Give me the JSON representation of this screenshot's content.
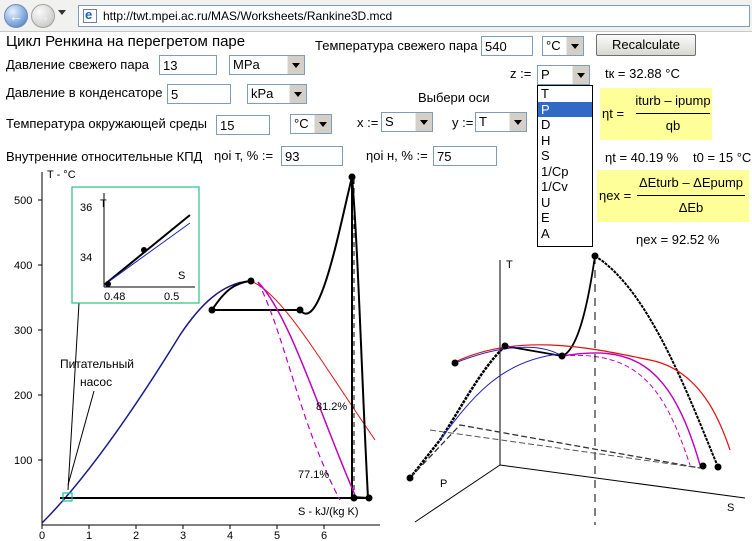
{
  "browser": {
    "back_glyph": "←",
    "forward_glyph": "→",
    "address": "http://twt.mpei.ac.ru/MAS/Worksheets/Rankine3D.mcd"
  },
  "sheet": {
    "title": "Цикл Ренкина на перегретом паре",
    "p0": {
      "label": "Давление свежего пара",
      "value": "13",
      "unit": "MPa"
    },
    "pk": {
      "label": "Давление в конденсаторе",
      "value": "5",
      "unit": "kPa"
    },
    "tenv": {
      "label": "Температура окружающей среды",
      "value": "15",
      "unit": "°C"
    },
    "efficiency": {
      "label": "Внутренние относительные КПД",
      "eta_t_label": "ηoi т, % :=",
      "eta_t_value": "93",
      "eta_p_label": "ηoi н, % :=",
      "eta_p_value": "75"
    },
    "t0": {
      "label": "Температура свежего пара",
      "value": "540",
      "unit": "°C"
    },
    "recalc_label": "Recalculate",
    "axes": {
      "label": "Выбери оси",
      "x_label": "x :=",
      "x_value": "S",
      "y_label": "y :=",
      "y_value": "T",
      "z_label": "z :=",
      "z_value": "P"
    },
    "z_options": [
      "T",
      "P",
      "D",
      "H",
      "S",
      "1/Cp",
      "1/Cv",
      "U",
      "E",
      "A"
    ],
    "z_selected": "P"
  },
  "results": {
    "tk": "tк = 32.88 °C",
    "eta_t_lhs": "ηt =",
    "eta_t_num": "iturb – ipump",
    "eta_t_den": "qb",
    "eta_t_val": "ηt = 40.19 %",
    "t0_val": "t0 = 15 °C",
    "eta_ex_lhs": "ηex =",
    "eta_ex_num": "ΔEturb – ΔEpump",
    "eta_ex_den": "ΔEb",
    "eta_ex_val": "ηex = 92.52 %"
  },
  "ts_chart": {
    "ylabel": "T - °C",
    "xlabel": "S - kJ/(kg K)",
    "x_ticks": [
      "0",
      "1",
      "2",
      "3",
      "4",
      "5",
      "6"
    ],
    "y_ticks": [
      "100",
      "200",
      "300",
      "400",
      "500"
    ],
    "pump_label_1": "Питательный",
    "pump_label_2": "насос",
    "label_812": "81.2%",
    "label_771": "77.1%",
    "inset": {
      "ylabel": "T",
      "xlabel": "S",
      "y_ticks": [
        "36",
        "34"
      ],
      "x_ticks": [
        "0.48",
        "0.5"
      ]
    }
  },
  "chart_data": [
    {
      "type": "line",
      "title": "",
      "xlabel": "S - kJ/(kg K)",
      "ylabel": "T - °C",
      "xlim": [
        0,
        7
      ],
      "ylim": [
        0,
        550
      ],
      "series": [
        {
          "x": [
            0.0,
            0.5,
            1.0,
            1.5,
            2.0,
            2.5,
            3.0,
            3.3,
            3.6,
            3.9,
            4.2,
            4.4
          ],
          "y": [
            0,
            30,
            80,
            125,
            175,
            225,
            270,
            300,
            330,
            355,
            370,
            373
          ]
        },
        {
          "x": [
            4.4,
            4.8,
            5.2,
            5.6,
            6.0,
            6.5,
            7.0
          ],
          "y": [
            373,
            365,
            345,
            310,
            270,
            210,
            140
          ]
        },
        {
          "x": [
            0.48,
            3.6,
            5.4,
            6.7,
            6.7,
            6.6,
            6.6,
            7.05,
            0.48
          ],
          "y": [
            37,
            330,
            330,
            540,
            37,
            40,
            37,
            37,
            37
          ]
        }
      ]
    }
  ]
}
